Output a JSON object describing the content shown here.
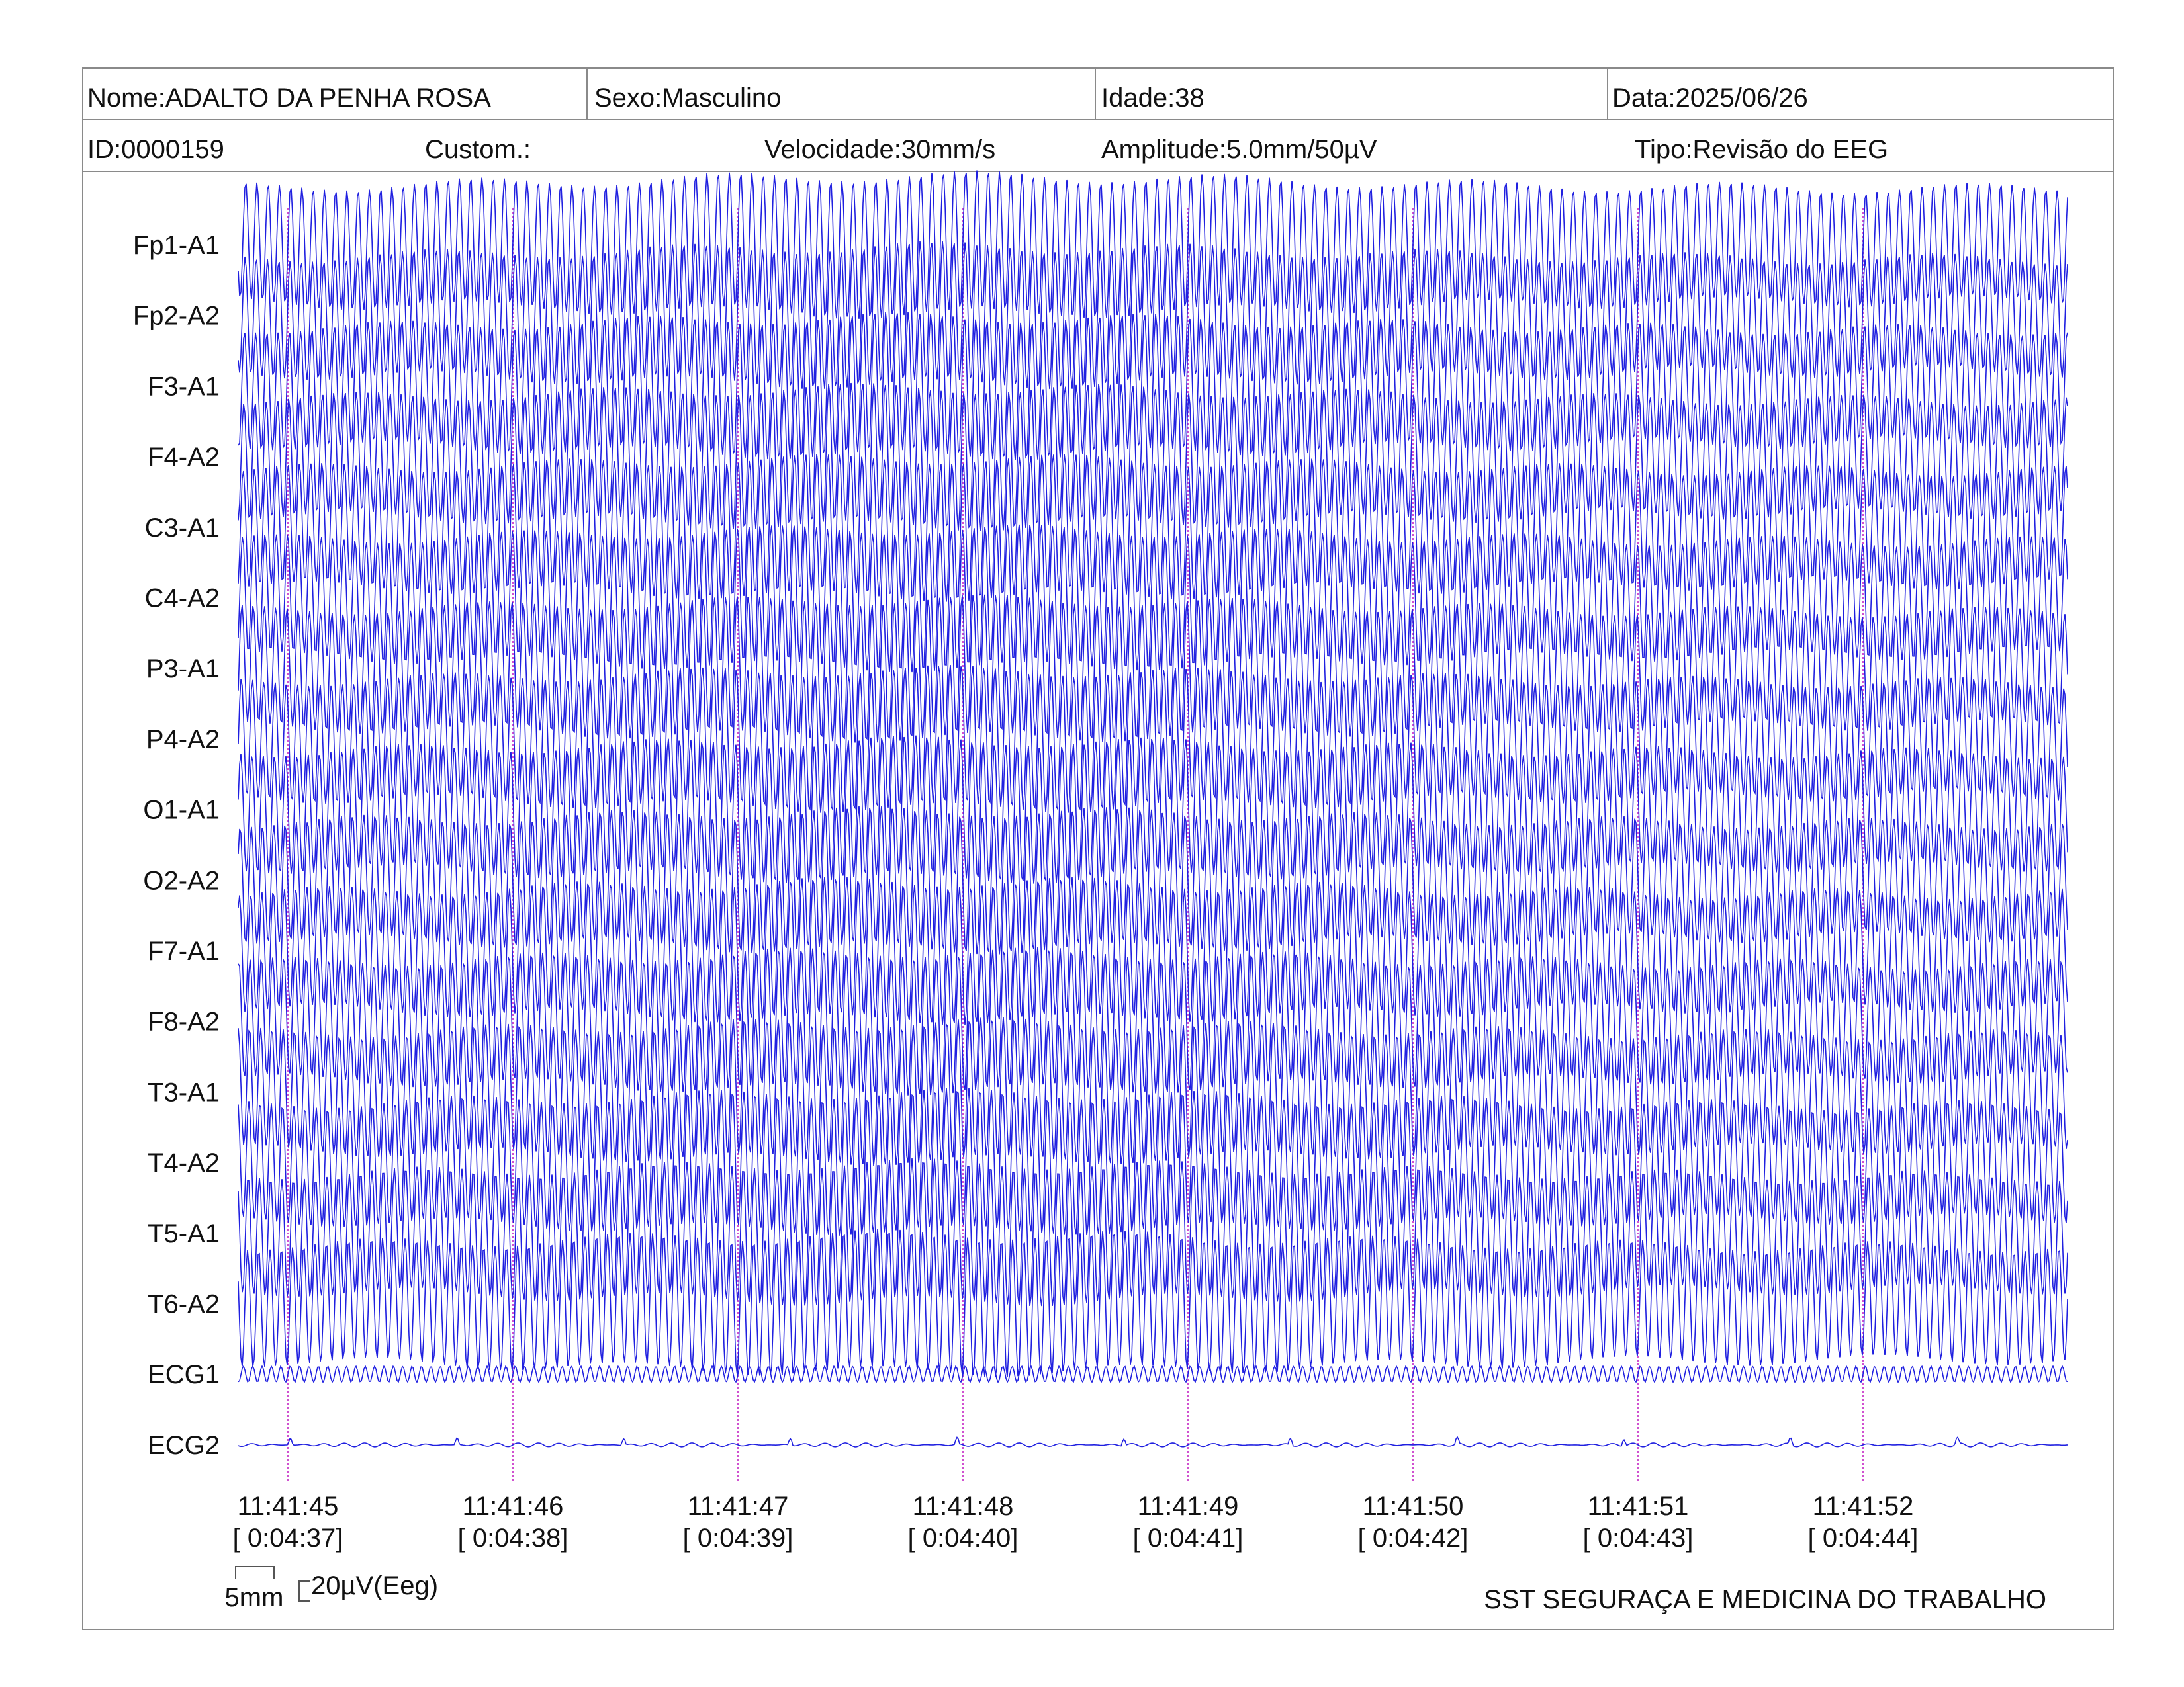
{
  "header": {
    "nome": "Nome:ADALTO DA PENHA ROSA",
    "sexo": "Sexo:Masculino",
    "idade": "Idade:38",
    "data": "Data:2025/06/26",
    "id": "ID:0000159",
    "custom": "Custom.:",
    "velocidade": "Velocidade:30mm/s",
    "amplitude": "Amplitude:5.0mm/50µV",
    "tipo": "Tipo:Revisão do EEG"
  },
  "calibration": {
    "time_label": "5mm",
    "amp_label": "20µV(Eeg)"
  },
  "footer": {
    "company": "SST SEGURAÇA E MEDICINA DO TRABALHO"
  },
  "colors": {
    "trace": "#2020e0",
    "marker": "#d050d0",
    "border": "#8a8a8a"
  },
  "chart_data": {
    "type": "line",
    "channels": [
      "Fp1-A1",
      "Fp2-A2",
      "F3-A1",
      "F4-A2",
      "C3-A1",
      "C4-A2",
      "P3-A1",
      "P4-A2",
      "O1-A1",
      "O2-A2",
      "F7-A1",
      "F8-A2",
      "T3-A1",
      "T4-A2",
      "T5-A1",
      "T6-A2",
      "ECG1",
      "ECG2"
    ],
    "time_ticks": [
      "11:41:45",
      "11:41:46",
      "11:41:47",
      "11:41:48",
      "11:41:49",
      "11:41:50",
      "11:41:51",
      "11:41:52"
    ],
    "elapsed_ticks": [
      "[ 0:04:37]",
      "[ 0:04:38]",
      "[ 0:04:39]",
      "[ 0:04:40]",
      "[ 0:04:41]",
      "[ 0:04:42]",
      "[ 0:04:43]",
      "[ 0:04:44]"
    ],
    "eeg_frequency_hz": 20,
    "ecg1_frequency_hz": 24,
    "x_range_seconds": [
      -0.23,
      7.85
    ]
  }
}
